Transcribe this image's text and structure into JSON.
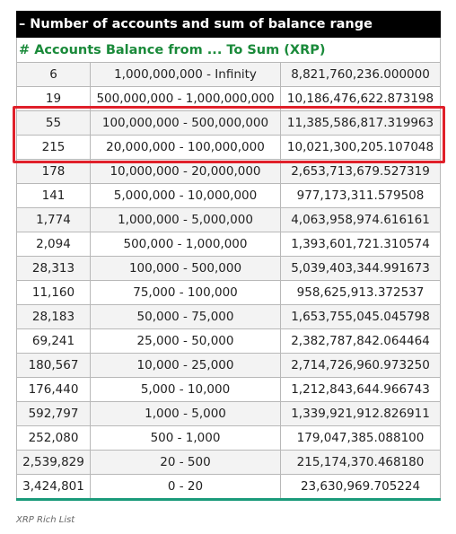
{
  "table": {
    "title": "– Number of accounts and sum of balance range",
    "subheader": "# Accounts Balance from ... To Sum (XRP)",
    "rows": [
      [
        "6",
        "1,000,000,000 - Infinity",
        "8,821,760,236.000000"
      ],
      [
        "19",
        "500,000,000 - 1,000,000,000",
        "10,186,476,622.873198"
      ],
      [
        "55",
        "100,000,000 - 500,000,000",
        "11,385,586,817.319963"
      ],
      [
        "215",
        "20,000,000 - 100,000,000",
        "10,021,300,205.107048"
      ],
      [
        "178",
        "10,000,000 - 20,000,000",
        "2,653,713,679.527319"
      ],
      [
        "141",
        "5,000,000 - 10,000,000",
        "977,173,311.579508"
      ],
      [
        "1,774",
        "1,000,000 - 5,000,000",
        "4,063,958,974.616161"
      ],
      [
        "2,094",
        "500,000 - 1,000,000",
        "1,393,601,721.310574"
      ],
      [
        "28,313",
        "100,000 - 500,000",
        "5,039,403,344.991673"
      ],
      [
        "11,160",
        "75,000 - 100,000",
        "958,625,913.372537"
      ],
      [
        "28,183",
        "50,000 - 75,000",
        "1,653,755,045.045798"
      ],
      [
        "69,241",
        "25,000 - 50,000",
        "2,382,787,842.064464"
      ],
      [
        "180,567",
        "10,000 - 25,000",
        "2,714,726,960.973250"
      ],
      [
        "176,440",
        "5,000 - 10,000",
        "1,212,843,644.966743"
      ],
      [
        "592,797",
        "1,000 - 5,000",
        "1,339,921,912.826911"
      ],
      [
        "252,080",
        "500 - 1,000",
        "179,047,385.088100"
      ],
      [
        "2,539,829",
        "20 - 500",
        "215,174,370.468180"
      ],
      [
        "3,424,801",
        "0 - 20",
        "23,630,969.705224"
      ]
    ]
  },
  "caption": "XRP Rich List"
}
